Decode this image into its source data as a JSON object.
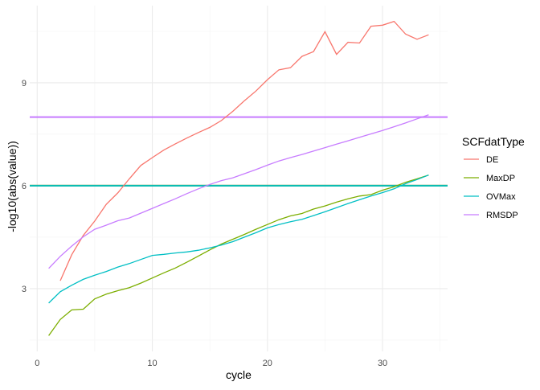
{
  "chart_data": {
    "type": "line",
    "title": "",
    "xlabel": "cycle",
    "ylabel": "-log10(abs(value))",
    "xlim": [
      -0.65,
      35.65
    ],
    "ylim": [
      1.17,
      11.25
    ],
    "x_ticks": [
      0,
      10,
      20,
      30
    ],
    "y_ticks": [
      3,
      6,
      9
    ],
    "grid": true,
    "legend": {
      "title": "SCFdatType",
      "placement": "right"
    },
    "series": [
      {
        "name": "DE",
        "color": "#F8766D",
        "x": [
          2,
          3,
          4,
          5,
          6,
          7,
          8,
          9,
          10,
          11,
          12,
          13,
          14,
          15,
          16,
          17,
          18,
          19,
          20,
          21,
          22,
          23,
          24,
          25,
          26,
          27,
          28,
          29,
          30,
          31,
          32,
          33,
          34
        ],
        "values": [
          3.23,
          3.99,
          4.55,
          4.97,
          5.46,
          5.79,
          6.2,
          6.59,
          6.82,
          7.04,
          7.22,
          7.39,
          7.55,
          7.7,
          7.9,
          8.17,
          8.48,
          8.76,
          9.09,
          9.38,
          9.44,
          9.77,
          9.91,
          10.49,
          9.83,
          10.18,
          10.16,
          10.65,
          10.68,
          10.79,
          10.42,
          10.27,
          10.4
        ],
        "threshold": 6
      },
      {
        "name": "MaxDP",
        "color": "#7CAE00",
        "x": [
          1,
          2,
          3,
          4,
          5,
          6,
          7,
          8,
          9,
          10,
          11,
          12,
          13,
          14,
          15,
          16,
          17,
          18,
          19,
          20,
          21,
          22,
          23,
          24,
          25,
          26,
          27,
          28,
          29,
          30,
          31,
          32,
          33,
          34
        ],
        "values": [
          1.63,
          2.1,
          2.38,
          2.4,
          2.7,
          2.84,
          2.94,
          3.03,
          3.16,
          3.31,
          3.46,
          3.6,
          3.77,
          3.95,
          4.13,
          4.3,
          4.44,
          4.58,
          4.73,
          4.87,
          5.01,
          5.12,
          5.19,
          5.32,
          5.41,
          5.52,
          5.62,
          5.7,
          5.74,
          5.87,
          5.97,
          6.1,
          6.2,
          6.31
        ],
        "threshold": 6
      },
      {
        "name": "OVMax",
        "color": "#00BFC4",
        "x": [
          1,
          2,
          3,
          4,
          5,
          6,
          7,
          8,
          9,
          10,
          11,
          12,
          13,
          14,
          15,
          16,
          17,
          18,
          19,
          20,
          21,
          22,
          23,
          24,
          25,
          26,
          27,
          28,
          29,
          30,
          31,
          32,
          33,
          34
        ],
        "values": [
          2.58,
          2.91,
          3.1,
          3.27,
          3.39,
          3.5,
          3.63,
          3.73,
          3.85,
          3.97,
          4.0,
          4.04,
          4.07,
          4.12,
          4.19,
          4.27,
          4.37,
          4.5,
          4.63,
          4.77,
          4.87,
          4.95,
          5.02,
          5.13,
          5.24,
          5.36,
          5.48,
          5.59,
          5.7,
          5.8,
          5.91,
          6.06,
          6.18,
          6.31
        ],
        "threshold": 6
      },
      {
        "name": "RMSDP",
        "color": "#C77CFF",
        "x": [
          1,
          2,
          3,
          4,
          5,
          6,
          7,
          8,
          9,
          10,
          11,
          12,
          13,
          14,
          15,
          16,
          17,
          18,
          19,
          20,
          21,
          22,
          23,
          24,
          25,
          26,
          27,
          28,
          29,
          30,
          31,
          32,
          33,
          34
        ],
        "values": [
          3.59,
          3.94,
          4.24,
          4.51,
          4.73,
          4.85,
          4.98,
          5.06,
          5.2,
          5.34,
          5.48,
          5.62,
          5.77,
          5.91,
          6.04,
          6.15,
          6.23,
          6.35,
          6.47,
          6.6,
          6.72,
          6.82,
          6.91,
          7.01,
          7.11,
          7.21,
          7.31,
          7.41,
          7.51,
          7.61,
          7.72,
          7.83,
          7.95,
          8.07
        ],
        "threshold": 8
      }
    ]
  }
}
